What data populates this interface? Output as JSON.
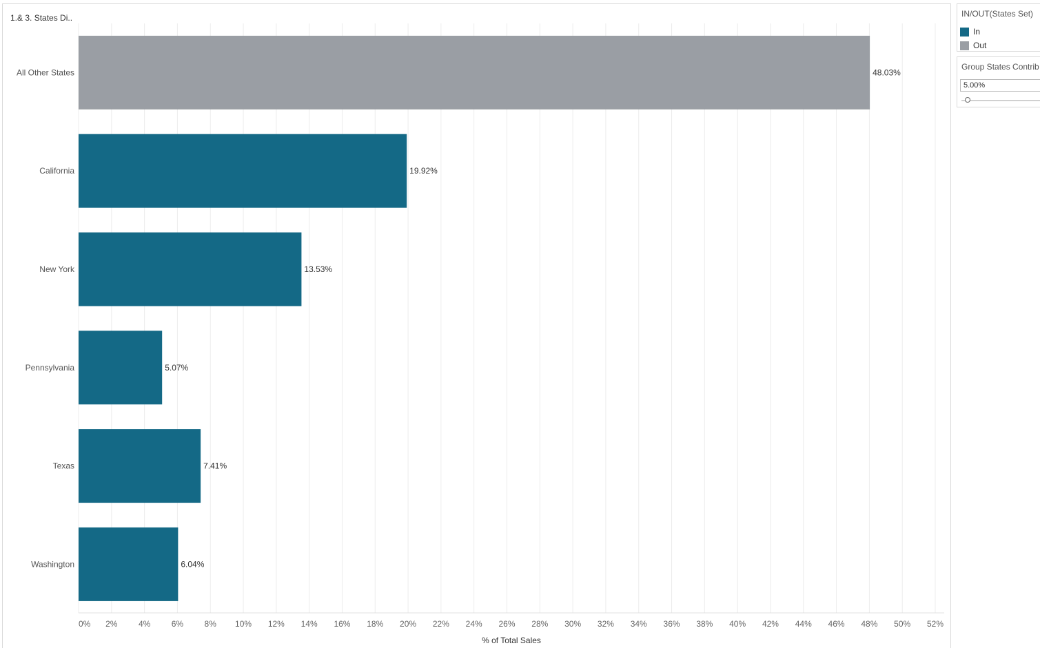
{
  "worksheet": {
    "title": "1.& 3. States Di.."
  },
  "legend": {
    "title": "IN/OUT(States Set)",
    "items": [
      {
        "label": "In",
        "color": "#146986"
      },
      {
        "label": "Out",
        "color": "#9a9ea4"
      }
    ]
  },
  "parameter": {
    "title": "Group States Contrib",
    "value": "5.00%"
  },
  "chart_data": {
    "type": "bar",
    "orientation": "horizontal",
    "xlabel": "% of Total Sales",
    "xlim": [
      0,
      52
    ],
    "x_ticks": [
      "0%",
      "2%",
      "4%",
      "6%",
      "8%",
      "10%",
      "12%",
      "14%",
      "16%",
      "18%",
      "20%",
      "22%",
      "24%",
      "26%",
      "28%",
      "30%",
      "32%",
      "34%",
      "36%",
      "38%",
      "40%",
      "42%",
      "44%",
      "46%",
      "48%",
      "50%",
      "52%"
    ],
    "grid": "vertical",
    "categories": [
      "All Other States",
      "California",
      "New York",
      "Pennsylvania",
      "Texas",
      "Washington"
    ],
    "values": [
      48.03,
      19.92,
      13.53,
      5.07,
      7.41,
      6.04
    ],
    "value_labels": [
      "48.03%",
      "19.92%",
      "13.53%",
      "5.07%",
      "7.41%",
      "6.04%"
    ],
    "groups": [
      "Out",
      "In",
      "In",
      "In",
      "In",
      "In"
    ],
    "colors": {
      "In": "#146986",
      "Out": "#9a9ea4"
    }
  }
}
